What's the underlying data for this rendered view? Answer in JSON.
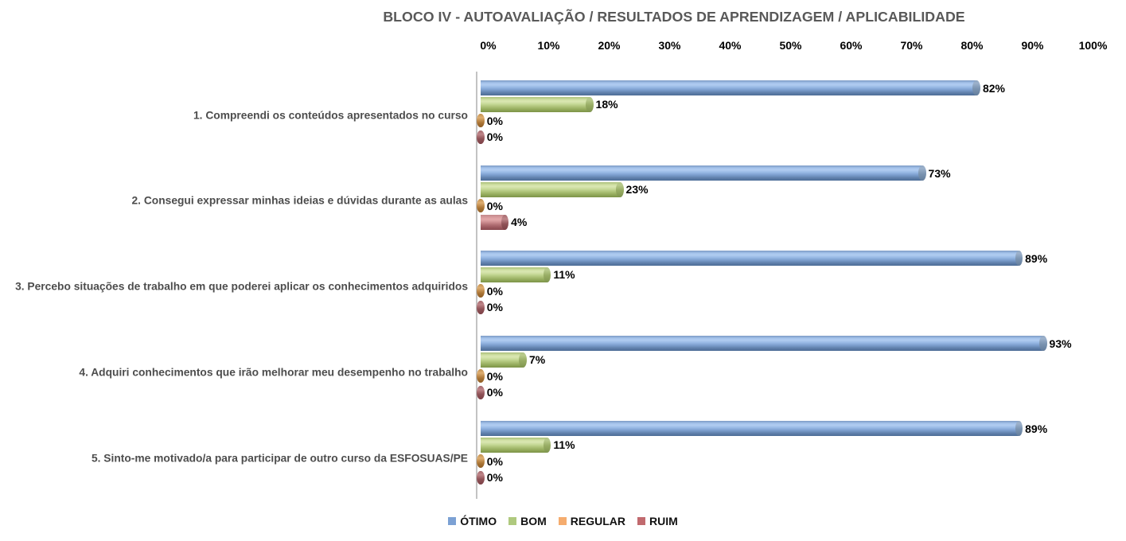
{
  "chart_data": {
    "type": "bar",
    "orientation": "horizontal",
    "title": "BLOCO IV - AUTOAVALIAÇÃO / RESULTADOS DE APRENDIZAGEM / APLICABILIDADE",
    "categories": [
      "1. Compreendi os conteúdos apresentados no curso",
      "2. Consegui expressar minhas ideias e dúvidas durante as aulas",
      "3. Percebo situações de trabalho em que poderei aplicar os conhecimentos adquiridos",
      "4. Adquiri conhecimentos que irão melhorar meu desempenho no trabalho",
      "5. Sinto-me motivado/a para participar de outro curso da ESFOSUAS/PE"
    ],
    "series": [
      {
        "name": "ÓTIMO",
        "values": [
          82,
          73,
          89,
          93,
          89
        ],
        "legend_color": "#7CA1D4",
        "body_gradient": [
          "#7B9AC4 0%",
          "#A7C5ED 18%",
          "#B0CCF0 30%",
          "#97B8E4 46%",
          "#7B9DCC 64%",
          "#6080AB 82%",
          "#4C6C96 100%"
        ],
        "cap_gradient": [
          "#8FA6C1 0%",
          "#9DB2CC 18%",
          "#7B94B1 55%",
          "#637D9B 100%"
        ]
      },
      {
        "name": "BOM",
        "values": [
          18,
          23,
          11,
          7,
          11
        ],
        "legend_color": "#AFC97E",
        "body_gradient": [
          "#AABF78 0%",
          "#D2E1A7 18%",
          "#D9E6B1 30%",
          "#C6D997 46%",
          "#ACC177 64%",
          "#93AA5B 82%",
          "#7C9347 100%"
        ],
        "cap_gradient": [
          "#AFC282 0%",
          "#B9CB8D 18%",
          "#97AC63 55%",
          "#7F954E 100%"
        ]
      },
      {
        "name": "REGULAR",
        "values": [
          0,
          0,
          0,
          0,
          0
        ],
        "legend_color": "#F5AC6E",
        "body_gradient": [
          "#C28F4E 0%",
          "#DFAF72 25%",
          "#C79656 45%",
          "#AA7435 70%",
          "#8F5D25 100%"
        ],
        "cap_gradient": [
          "#C28F4E 0%",
          "#DFAF72 28%",
          "#AA7435 68%",
          "#8F5D25 100%"
        ]
      },
      {
        "name": "RUIM",
        "values": [
          0,
          4,
          0,
          0,
          0
        ],
        "legend_color": "#C16A6E",
        "body_gradient": [
          "#C3888B 0%",
          "#DEA1A3 22%",
          "#E2A7A9 32%",
          "#CE8F92 48%",
          "#B26F74 66%",
          "#9A575D 84%",
          "#8B4A50 100%"
        ],
        "cap_gradient": [
          "#A66A6E 0%",
          "#BE8589 28%",
          "#8F5257 62%",
          "#7C4046 100%"
        ]
      }
    ],
    "x_ticks": [
      "0%",
      "10%",
      "20%",
      "30%",
      "40%",
      "50%",
      "60%",
      "70%",
      "80%",
      "90%",
      "100%"
    ],
    "xlim": [
      0,
      100
    ],
    "value_suffix": "%",
    "data_labels": true,
    "grid": false,
    "legend_position": "bottom",
    "axis_line_color": "#c3c3c3",
    "background_color": "#ffffff",
    "title_color": "#595959",
    "category_label_color": "#4d4d4d",
    "tick_label_color": "#000000",
    "data_label_color": "#000000"
  }
}
